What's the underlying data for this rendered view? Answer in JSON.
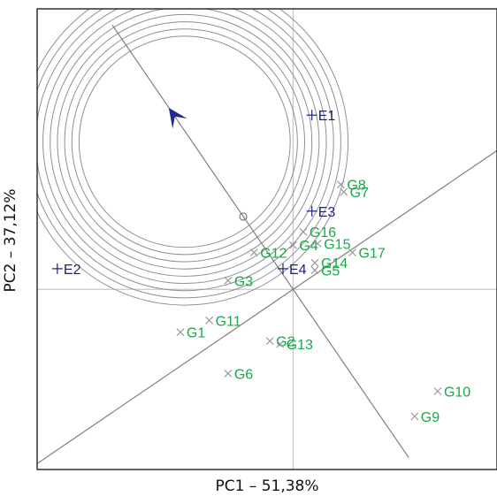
{
  "chart_data": {
    "type": "scatter",
    "title": "",
    "xlabel": "PC1 – 51,38%",
    "ylabel": "PC2 – 37,12%",
    "xlim": [
      -1.77,
      1.41
    ],
    "ylim": [
      -1.22,
      1.9
    ],
    "grid": false,
    "legend": "none",
    "origin_lines": true,
    "average_environment_axis": {
      "direction": [
        -0.5,
        0.714
      ],
      "marker": [
        -0.345,
        0.493
      ]
    },
    "concentric_circles": {
      "center": [
        -0.75,
        1.0
      ],
      "radii_inner": 0.73,
      "radii_outer": 1.13,
      "count": 9
    },
    "reference_lines": [
      {
        "through": [
          0.0,
          0.0
        ],
        "to": [
          1.41,
          0.94
        ]
      },
      {
        "through": [
          0.0,
          0.0
        ],
        "to": [
          -1.77,
          -1.18
        ]
      },
      {
        "through": [
          0.0,
          0.0
        ],
        "to": [
          0.8,
          -1.14
        ]
      },
      {
        "through": [
          0.0,
          0.0
        ],
        "to": [
          -1.25,
          1.79
        ]
      }
    ],
    "series": [
      {
        "name": "",
        "color": "#1f1f7a",
        "marker": "+",
        "points": [
          {
            "label": "E1",
            "x": 0.13,
            "y": 1.18
          },
          {
            "label": "E2",
            "x": -1.63,
            "y": 0.14
          },
          {
            "label": "E3",
            "x": 0.13,
            "y": 0.53
          },
          {
            "label": "E4",
            "x": -0.07,
            "y": 0.14
          }
        ]
      },
      {
        "name": "",
        "color": "#1aa84a",
        "marker": "x",
        "points": [
          {
            "label": "G1",
            "x": -0.78,
            "y": -0.29
          },
          {
            "label": "G2",
            "x": -0.16,
            "y": -0.35
          },
          {
            "label": "G3",
            "x": -0.45,
            "y": 0.06
          },
          {
            "label": "G4",
            "x": 0.0,
            "y": 0.3
          },
          {
            "label": "G5",
            "x": 0.15,
            "y": 0.13
          },
          {
            "label": "G6",
            "x": -0.45,
            "y": -0.57
          },
          {
            "label": "G7",
            "x": 0.35,
            "y": 0.66
          },
          {
            "label": "G8",
            "x": 0.33,
            "y": 0.71
          },
          {
            "label": "G9",
            "x": 0.84,
            "y": -0.86
          },
          {
            "label": "G10",
            "x": 1.0,
            "y": -0.69
          },
          {
            "label": "G11",
            "x": -0.58,
            "y": -0.21
          },
          {
            "label": "G12",
            "x": -0.27,
            "y": 0.25
          },
          {
            "label": "G13",
            "x": -0.09,
            "y": -0.37
          },
          {
            "label": "G14",
            "x": 0.15,
            "y": 0.18
          },
          {
            "label": "G15",
            "x": 0.17,
            "y": 0.31
          },
          {
            "label": "G16",
            "x": 0.07,
            "y": 0.39
          },
          {
            "label": "G17",
            "x": 0.41,
            "y": 0.25
          }
        ]
      }
    ]
  }
}
